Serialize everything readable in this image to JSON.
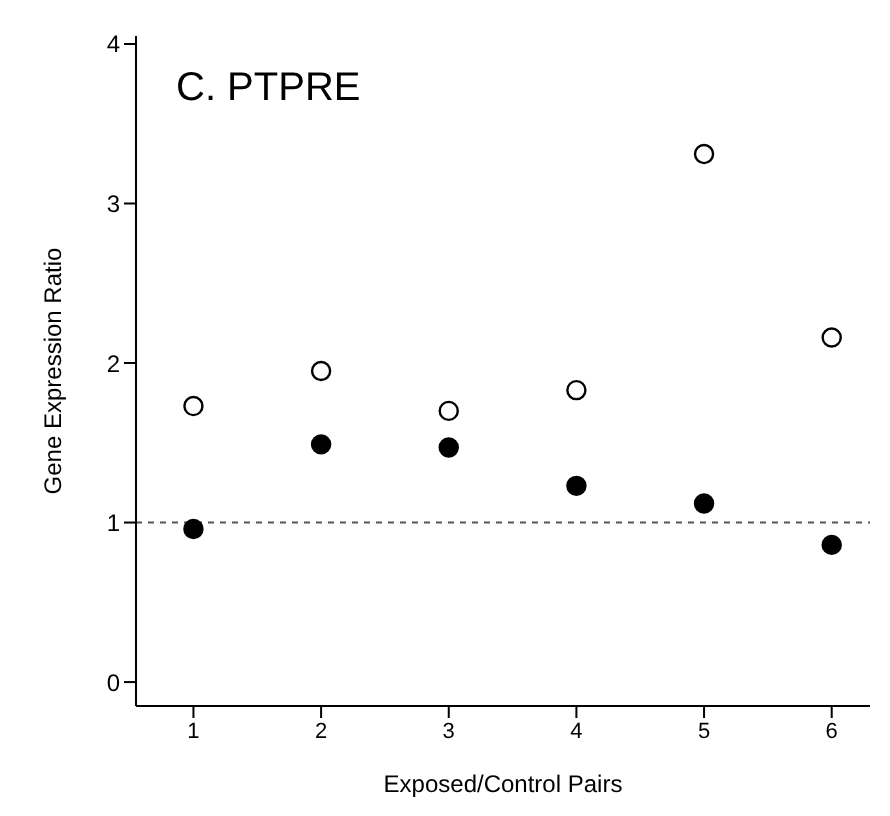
{
  "chart_data": {
    "type": "scatter",
    "title": "C.  PTPRE",
    "xlabel": "Exposed/Control Pairs",
    "ylabel": "Gene Expression Ratio",
    "x": [
      1,
      2,
      3,
      4,
      5,
      6
    ],
    "series": [
      {
        "color": "#ffffff",
        "values": [
          1.73,
          1.95,
          1.7,
          1.83,
          3.31,
          2.16
        ]
      },
      {
        "color": "#000000",
        "values": [
          0.96,
          1.49,
          1.47,
          1.23,
          1.12,
          0.86
        ]
      }
    ],
    "xlim": [
      0.55,
      6.3
    ],
    "xticks": [
      1,
      2,
      3,
      4,
      5,
      6
    ],
    "ylim": [
      -0.15,
      4.05
    ],
    "yticks": [
      0,
      1,
      2,
      3,
      4
    ],
    "ref_lines": [
      {
        "axis": "y",
        "value": 1,
        "line_style": "dotted",
        "color": "#555555"
      }
    ],
    "grid": false,
    "marker": "circle"
  }
}
